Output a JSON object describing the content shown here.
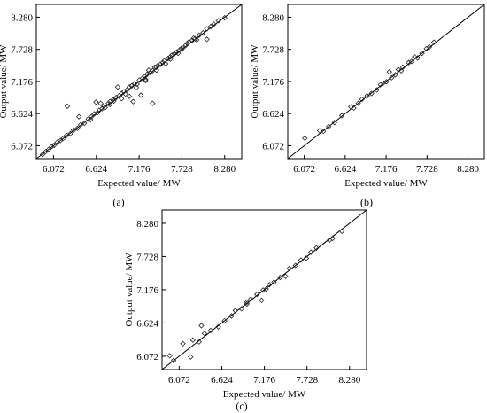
{
  "chart_data": [
    {
      "type": "scatter",
      "panel_label": "(a)",
      "xlabel": "Expected value/ MW",
      "ylabel": "Output value/ MW",
      "xticks": [
        "6.072",
        "6.624",
        "7.176",
        "7.728",
        "8.280"
      ],
      "yticks": [
        "6.072",
        "6.624",
        "7.176",
        "7.728",
        "8.280"
      ],
      "xlim": [
        5.85,
        8.5
      ],
      "ylim": [
        5.85,
        8.5
      ],
      "reference_line": "y = x",
      "marker": "diamond",
      "points": [
        [
          5.93,
          5.92
        ],
        [
          5.97,
          5.97
        ],
        [
          6.01,
          6.01
        ],
        [
          6.05,
          6.06
        ],
        [
          6.08,
          6.08
        ],
        [
          6.12,
          6.13
        ],
        [
          6.16,
          6.16
        ],
        [
          6.2,
          6.2
        ],
        [
          6.24,
          6.25
        ],
        [
          6.29,
          6.28
        ],
        [
          6.33,
          6.34
        ],
        [
          6.38,
          6.37
        ],
        [
          6.42,
          6.43
        ],
        [
          6.47,
          6.46
        ],
        [
          6.25,
          6.75
        ],
        [
          6.4,
          6.57
        ],
        [
          6.52,
          6.53
        ],
        [
          6.56,
          6.57
        ],
        [
          6.6,
          6.62
        ],
        [
          6.64,
          6.64
        ],
        [
          6.66,
          6.68
        ],
        [
          6.7,
          6.71
        ],
        [
          6.72,
          6.75
        ],
        [
          6.74,
          6.73
        ],
        [
          6.78,
          6.8
        ],
        [
          6.62,
          6.82
        ],
        [
          6.68,
          6.8
        ],
        [
          6.8,
          6.83
        ],
        [
          6.84,
          6.86
        ],
        [
          6.88,
          6.9
        ],
        [
          6.92,
          6.93
        ],
        [
          6.95,
          6.97
        ],
        [
          6.98,
          7.0
        ],
        [
          7.02,
          7.03
        ],
        [
          6.9,
          7.08
        ],
        [
          7.05,
          7.08
        ],
        [
          7.08,
          7.1
        ],
        [
          7.12,
          7.14
        ],
        [
          7.15,
          7.13
        ],
        [
          7.18,
          7.2
        ],
        [
          7.2,
          6.94
        ],
        [
          7.22,
          7.23
        ],
        [
          7.25,
          7.26
        ],
        [
          7.26,
          7.21
        ],
        [
          7.28,
          7.3
        ],
        [
          7.32,
          7.33
        ],
        [
          7.35,
          7.36
        ],
        [
          7.38,
          7.42
        ],
        [
          7.4,
          7.37
        ],
        [
          7.42,
          7.45
        ],
        [
          7.45,
          7.47
        ],
        [
          7.48,
          7.5
        ],
        [
          7.5,
          7.53
        ],
        [
          7.52,
          7.48
        ],
        [
          7.55,
          7.57
        ],
        [
          7.58,
          7.6
        ],
        [
          7.6,
          7.63
        ],
        [
          7.63,
          7.65
        ],
        [
          7.66,
          7.68
        ],
        [
          7.7,
          7.72
        ],
        [
          7.74,
          7.75
        ],
        [
          7.78,
          7.8
        ],
        [
          7.82,
          7.86
        ],
        [
          7.86,
          7.88
        ],
        [
          7.9,
          7.91
        ],
        [
          7.95,
          7.97
        ],
        [
          8.0,
          8.01
        ],
        [
          8.05,
          8.08
        ],
        [
          8.1,
          8.12
        ],
        [
          8.14,
          8.16
        ],
        [
          8.2,
          8.22
        ],
        [
          8.28,
          8.27
        ],
        [
          6.8,
          6.78
        ],
        [
          7.05,
          6.92
        ],
        [
          7.14,
          7.07
        ],
        [
          7.26,
          7.19
        ],
        [
          7.35,
          6.8
        ],
        [
          7.3,
          7.37
        ],
        [
          7.1,
          6.83
        ],
        [
          6.95,
          6.88
        ],
        [
          7.0,
          6.96
        ],
        [
          7.68,
          7.66
        ],
        [
          7.8,
          7.83
        ],
        [
          7.92,
          7.89
        ],
        [
          8.05,
          7.9
        ],
        [
          6.55,
          6.52
        ],
        [
          6.85,
          6.84
        ],
        [
          7.4,
          7.42
        ],
        [
          7.58,
          7.56
        ],
        [
          7.72,
          7.74
        ],
        [
          7.88,
          7.92
        ]
      ]
    },
    {
      "type": "scatter",
      "panel_label": "(b)",
      "xlabel": "Expected value/ MW",
      "ylabel": "Output value/ MW",
      "xticks": [
        "6.072",
        "6.624",
        "7.176",
        "7.728",
        "8.280"
      ],
      "yticks": [
        "6.072",
        "6.624",
        "7.176",
        "7.728",
        "8.280"
      ],
      "xlim": [
        5.85,
        8.5
      ],
      "ylim": [
        5.85,
        8.5
      ],
      "reference_line": "y = x",
      "marker": "diamond",
      "points": [
        [
          6.08,
          6.2
        ],
        [
          6.28,
          6.33
        ],
        [
          6.33,
          6.32
        ],
        [
          6.4,
          6.4
        ],
        [
          6.48,
          6.47
        ],
        [
          6.58,
          6.59
        ],
        [
          6.7,
          6.74
        ],
        [
          6.74,
          6.72
        ],
        [
          6.8,
          6.8
        ],
        [
          6.85,
          6.87
        ],
        [
          6.92,
          6.93
        ],
        [
          6.98,
          6.97
        ],
        [
          7.05,
          7.03
        ],
        [
          7.1,
          7.12
        ],
        [
          7.14,
          7.15
        ],
        [
          7.18,
          7.17
        ],
        [
          7.25,
          7.24
        ],
        [
          7.3,
          7.29
        ],
        [
          7.34,
          7.38
        ],
        [
          7.4,
          7.42
        ],
        [
          7.48,
          7.5
        ],
        [
          7.52,
          7.52
        ],
        [
          7.56,
          7.6
        ],
        [
          7.6,
          7.58
        ],
        [
          7.66,
          7.66
        ],
        [
          7.72,
          7.74
        ],
        [
          7.76,
          7.77
        ],
        [
          7.82,
          7.85
        ],
        [
          7.22,
          7.34
        ],
        [
          7.38,
          7.36
        ]
      ]
    },
    {
      "type": "scatter",
      "panel_label": "(c)",
      "xlabel": "Expected value/ MW",
      "ylabel": "Output value/ MW",
      "xticks": [
        "6.072",
        "6.624",
        "7.176",
        "7.728",
        "8.280"
      ],
      "yticks": [
        "6.072",
        "6.624",
        "7.176",
        "7.728",
        "8.280"
      ],
      "xlim": [
        5.85,
        8.5
      ],
      "ylim": [
        5.85,
        8.5
      ],
      "reference_line": "y = x",
      "marker": "diamond",
      "points": [
        [
          5.95,
          6.08
        ],
        [
          6.0,
          6.0
        ],
        [
          6.12,
          6.28
        ],
        [
          6.22,
          6.06
        ],
        [
          6.25,
          6.34
        ],
        [
          6.33,
          6.31
        ],
        [
          6.4,
          6.45
        ],
        [
          6.48,
          6.5
        ],
        [
          6.58,
          6.56
        ],
        [
          6.66,
          6.66
        ],
        [
          6.75,
          6.74
        ],
        [
          6.8,
          6.83
        ],
        [
          6.88,
          6.86
        ],
        [
          6.95,
          6.94
        ],
        [
          7.0,
          7.02
        ],
        [
          7.08,
          7.1
        ],
        [
          7.14,
          7.0
        ],
        [
          7.16,
          7.17
        ],
        [
          7.2,
          7.19
        ],
        [
          7.24,
          7.26
        ],
        [
          7.3,
          7.3
        ],
        [
          7.38,
          7.38
        ],
        [
          7.45,
          7.4
        ],
        [
          7.5,
          7.53
        ],
        [
          7.58,
          7.58
        ],
        [
          7.65,
          7.67
        ],
        [
          7.72,
          7.7
        ],
        [
          7.78,
          7.8
        ],
        [
          7.85,
          7.87
        ],
        [
          8.02,
          8.0
        ],
        [
          8.06,
          8.03
        ],
        [
          8.18,
          8.15
        ],
        [
          6.36,
          6.58
        ],
        [
          6.95,
          6.97
        ]
      ]
    }
  ]
}
